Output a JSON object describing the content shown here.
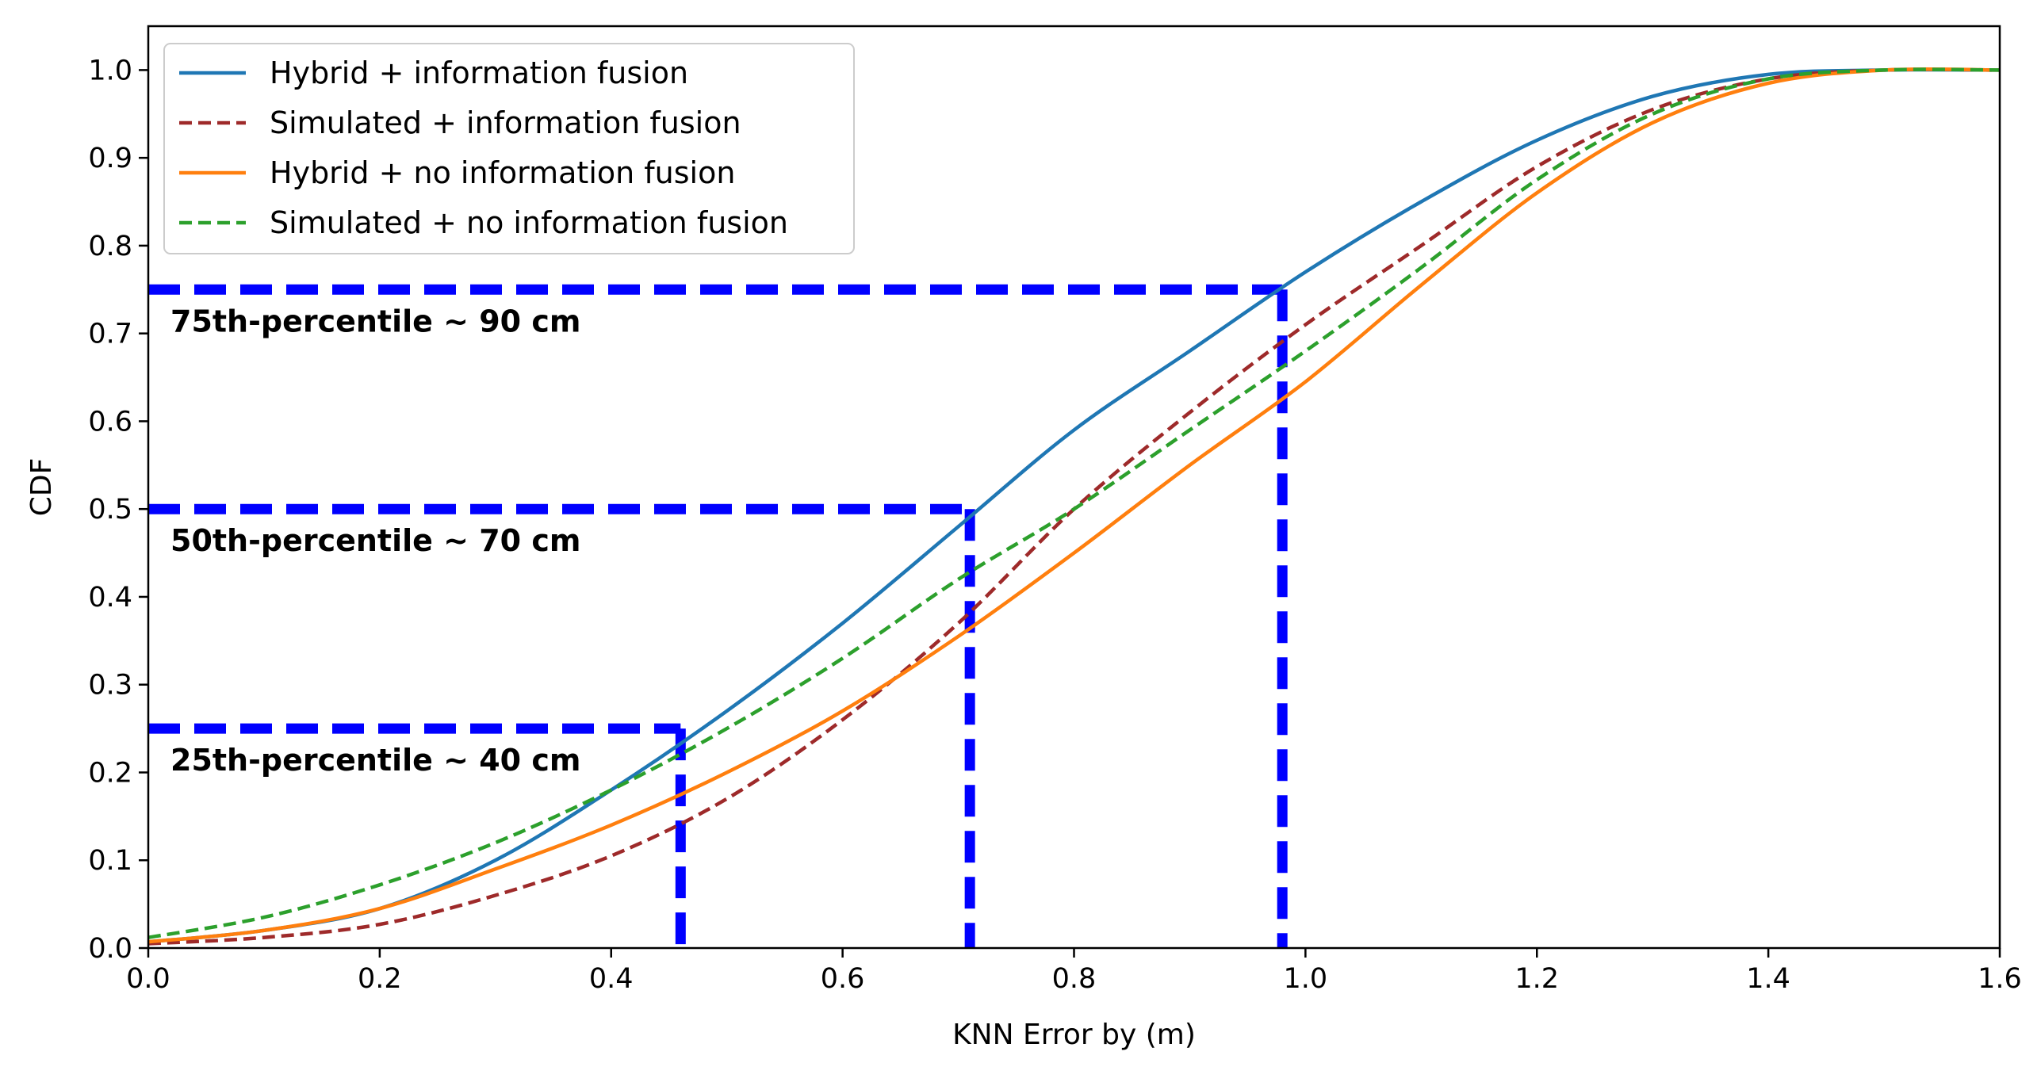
{
  "chart_data": {
    "type": "line",
    "title": "",
    "xlabel": "KNN Error by (m)",
    "ylabel": "CDF",
    "xlim": [
      0.0,
      1.6
    ],
    "ylim": [
      0.0,
      1.05
    ],
    "xticks": [
      "0.0",
      "0.2",
      "0.4",
      "0.6",
      "0.8",
      "1.0",
      "1.2",
      "1.4",
      "1.6"
    ],
    "yticks": [
      "0.0",
      "0.1",
      "0.2",
      "0.3",
      "0.4",
      "0.5",
      "0.6",
      "0.7",
      "0.8",
      "0.9",
      "1.0"
    ],
    "grid": false,
    "legend_position": "top-left",
    "x": [
      0.0,
      0.1,
      0.2,
      0.3,
      0.4,
      0.5,
      0.6,
      0.7,
      0.8,
      0.9,
      1.0,
      1.1,
      1.2,
      1.3,
      1.4,
      1.5,
      1.6
    ],
    "series": [
      {
        "name": "Hybrid + information fusion",
        "color": "#1f77b4",
        "style": "solid",
        "values": [
          0.007,
          0.02,
          0.045,
          0.1,
          0.18,
          0.27,
          0.37,
          0.48,
          0.59,
          0.68,
          0.77,
          0.85,
          0.92,
          0.97,
          0.995,
          1.0,
          1.0
        ]
      },
      {
        "name": "Simulated + information fusion",
        "color": "#9e2a2a",
        "style": "dashed",
        "values": [
          0.005,
          0.012,
          0.027,
          0.06,
          0.105,
          0.17,
          0.26,
          0.37,
          0.5,
          0.61,
          0.71,
          0.8,
          0.89,
          0.955,
          0.99,
          1.0,
          1.0
        ]
      },
      {
        "name": "Hybrid + no information fusion",
        "color": "#ff7f0e",
        "style": "solid",
        "values": [
          0.007,
          0.02,
          0.045,
          0.09,
          0.14,
          0.2,
          0.27,
          0.355,
          0.45,
          0.55,
          0.645,
          0.755,
          0.86,
          0.94,
          0.985,
          1.0,
          1.0
        ]
      },
      {
        "name": "Simulated + no information fusion",
        "color": "#2ca02c",
        "style": "dashed",
        "values": [
          0.012,
          0.035,
          0.072,
          0.12,
          0.18,
          0.25,
          0.33,
          0.42,
          0.5,
          0.59,
          0.68,
          0.775,
          0.875,
          0.95,
          0.99,
          1.0,
          1.0
        ]
      }
    ],
    "reference_lines": [
      {
        "x": 0.46,
        "y": 0.25,
        "label": "25th-percentile ~ 40 cm",
        "color": "#0000ff"
      },
      {
        "x": 0.71,
        "y": 0.5,
        "label": "50th-percentile ~ 70 cm",
        "color": "#0000ff"
      },
      {
        "x": 0.98,
        "y": 0.75,
        "label": "75th-percentile ~ 90 cm",
        "color": "#0000ff"
      }
    ]
  }
}
